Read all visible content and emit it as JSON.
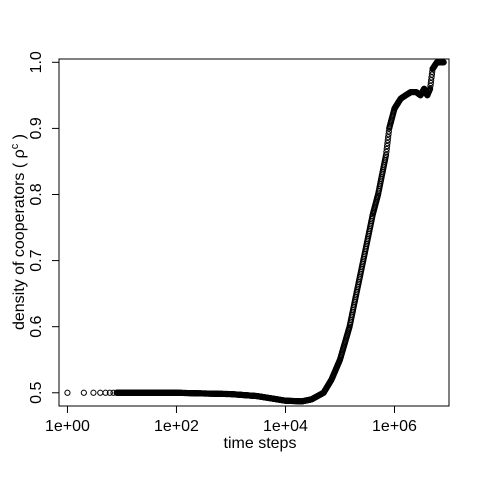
{
  "chart_data": {
    "type": "scatter",
    "title": "",
    "xlabel": "time steps",
    "ylabel": "density of cooperators ( ρ",
    "ylabel_superscript": "c",
    "ylabel_suffix": " )",
    "x_scale": "log10",
    "xlim": [
      0.7,
      10000000
    ],
    "ylim": [
      0.48,
      1.005
    ],
    "x_ticks": [
      1,
      100,
      10000,
      1000000
    ],
    "x_tick_labels": [
      "1e+00",
      "1e+02",
      "1e+04",
      "1e+06"
    ],
    "y_ticks": [
      0.5,
      0.6,
      0.7,
      0.8,
      0.9,
      1.0
    ],
    "y_tick_labels": [
      "0.5",
      "0.6",
      "0.7",
      "0.8",
      "0.9",
      "1.0"
    ],
    "grid": false,
    "marker": "open-circle",
    "series": [
      {
        "points": [
          [
            1,
            0.5
          ],
          [
            2,
            0.5
          ],
          [
            3,
            0.5
          ],
          [
            4,
            0.5
          ],
          [
            5,
            0.5
          ],
          [
            6,
            0.5
          ],
          [
            7,
            0.5
          ],
          [
            8,
            0.5
          ],
          [
            10,
            0.5
          ],
          [
            20,
            0.5
          ],
          [
            50,
            0.5
          ],
          [
            100,
            0.5
          ],
          [
            300,
            0.499
          ],
          [
            1000,
            0.498
          ],
          [
            3000,
            0.495
          ],
          [
            6000,
            0.491
          ],
          [
            10000,
            0.488
          ],
          [
            20000,
            0.487
          ],
          [
            30000,
            0.49
          ],
          [
            50000,
            0.5
          ],
          [
            70000,
            0.52
          ],
          [
            100000,
            0.55
          ],
          [
            150000,
            0.6
          ],
          [
            200000,
            0.65
          ],
          [
            300000,
            0.72
          ],
          [
            400000,
            0.77
          ],
          [
            500000,
            0.8
          ],
          [
            700000,
            0.86
          ],
          [
            800000,
            0.9
          ],
          [
            1000000,
            0.93
          ],
          [
            1300000,
            0.945
          ],
          [
            1600000,
            0.95
          ],
          [
            2000000,
            0.955
          ],
          [
            2500000,
            0.955
          ],
          [
            3000000,
            0.95
          ],
          [
            3500000,
            0.96
          ],
          [
            4000000,
            0.95
          ],
          [
            4500000,
            0.96
          ],
          [
            5000000,
            0.99
          ],
          [
            6000000,
            1.0
          ],
          [
            8000000,
            1.0
          ]
        ]
      }
    ]
  }
}
